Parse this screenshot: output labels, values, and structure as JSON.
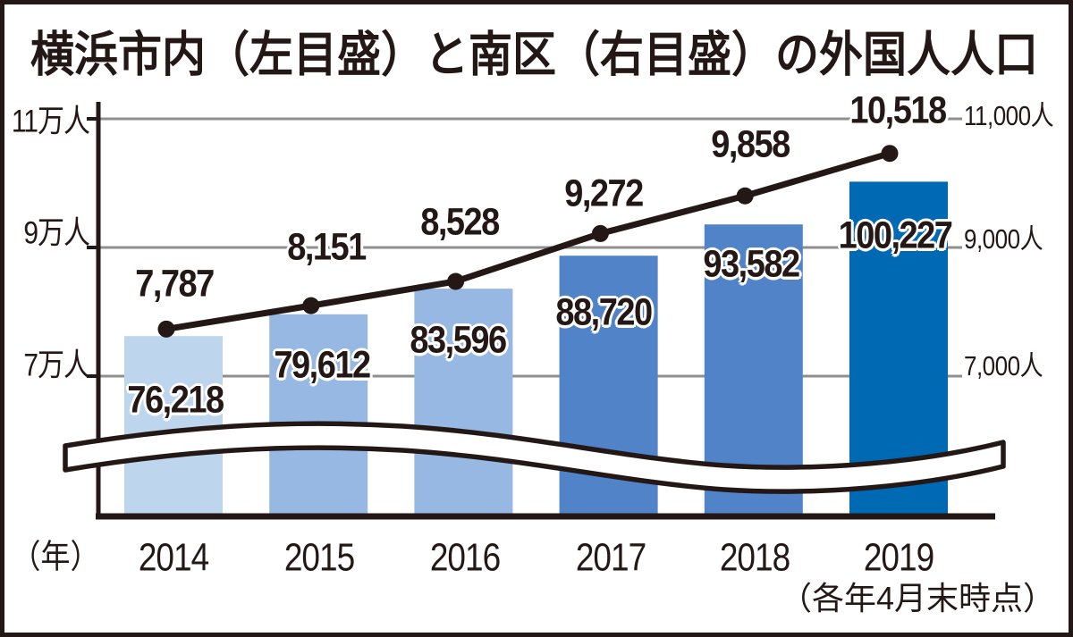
{
  "title": "横浜市内（左目盛）と南区（右目盛）の外国人人口",
  "footnote": "（各年4月末時点）",
  "x_axis": {
    "unit_label": "（年）",
    "categories": [
      "2014",
      "2015",
      "2016",
      "2017",
      "2018",
      "2019"
    ]
  },
  "left_axis": {
    "tick_labels": [
      "11万人",
      "9万人",
      "7万人"
    ]
  },
  "right_axis": {
    "tick_labels": [
      "11,000人",
      "9,000人",
      "7,000人"
    ]
  },
  "colors": {
    "ink": "#231815",
    "gridline": "#8f8f8f",
    "background": "#ffffff",
    "bar_2019_accent": "#0069b4"
  },
  "chart_data": {
    "type": "bar+line combo, dual axis, with axis break wave near baseline",
    "title": "横浜市内（左目盛）と南区（右目盛）の外国人人口",
    "note": "（各年4月末時点）",
    "categories": [
      2014,
      2015,
      2016,
      2017,
      2018,
      2019
    ],
    "series": [
      {
        "name": "横浜市内（左目盛）",
        "type": "bar",
        "axis": "left",
        "values": [
          76218,
          79612,
          83596,
          88720,
          93582,
          100227
        ],
        "labels": [
          "76,218",
          "79,612",
          "83,596",
          "88,720",
          "93,582",
          "100,227"
        ],
        "colors": [
          "#bed5ee",
          "#97b8e2",
          "#97b8e2",
          "#5083c8",
          "#5083c8",
          "#0069b4"
        ]
      },
      {
        "name": "南区（右目盛）",
        "type": "line",
        "axis": "right",
        "values": [
          7787,
          8151,
          8528,
          9272,
          9858,
          10518
        ],
        "labels": [
          "7,787",
          "8,151",
          "8,528",
          "9,272",
          "9,858",
          "10,518"
        ],
        "color": "#231815"
      }
    ],
    "left_axis": {
      "ticks": [
        110000,
        90000,
        70000
      ],
      "tick_labels": [
        "11万人",
        "9万人",
        "7万人"
      ],
      "range_shown": [
        70000,
        110000
      ]
    },
    "right_axis": {
      "ticks": [
        11000,
        9000,
        7000
      ],
      "tick_labels": [
        "11,000人",
        "9,000人",
        "7,000人"
      ],
      "range_shown": [
        7000,
        11000
      ]
    },
    "grid": "horizontal gridlines at shared tick levels",
    "legend": "none (series identified in title)",
    "axis_break": true
  }
}
